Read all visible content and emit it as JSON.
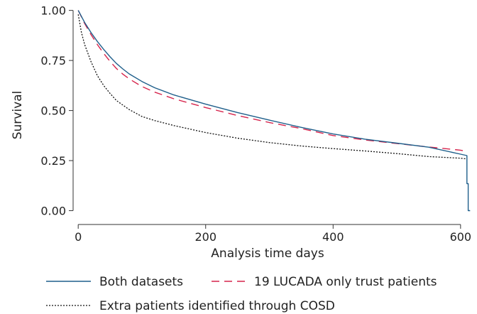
{
  "chart_data": {
    "type": "line",
    "title": "",
    "xlabel": "Analysis time days",
    "ylabel": "Survival",
    "xlim": [
      -8,
      618
    ],
    "ylim": [
      -0.03,
      1.02
    ],
    "xticks": [
      0,
      200,
      400,
      600
    ],
    "xtick_labels": [
      "0",
      "200",
      "400",
      "600"
    ],
    "yticks": [
      0,
      0.25,
      0.5,
      0.75,
      1
    ],
    "ytick_labels": [
      "0.00",
      "0.25",
      "0.50",
      "0.75",
      "1.00"
    ],
    "grid": false,
    "legend_position": "bottom",
    "series": [
      {
        "name": "Both datasets",
        "color": "#1f5f8b",
        "dash": "solid",
        "x": [
          0,
          10,
          20,
          30,
          40,
          50,
          60,
          70,
          80,
          100,
          120,
          150,
          200,
          250,
          300,
          350,
          400,
          450,
          500,
          550,
          600,
          610,
          610,
          612,
          612,
          615
        ],
        "y": [
          1.0,
          0.94,
          0.89,
          0.845,
          0.805,
          0.768,
          0.735,
          0.708,
          0.683,
          0.645,
          0.614,
          0.578,
          0.532,
          0.49,
          0.452,
          0.416,
          0.383,
          0.357,
          0.337,
          0.317,
          0.282,
          0.275,
          0.135,
          0.135,
          0.0,
          0.0
        ]
      },
      {
        "name": "19 LUCADA only trust patients",
        "color": "#d6244c",
        "dash": "dashed",
        "x": [
          0,
          10,
          20,
          30,
          40,
          50,
          60,
          70,
          80,
          100,
          120,
          150,
          200,
          250,
          300,
          350,
          400,
          450,
          500,
          550,
          600,
          610
        ],
        "y": [
          1.0,
          0.935,
          0.88,
          0.83,
          0.785,
          0.745,
          0.71,
          0.682,
          0.658,
          0.62,
          0.592,
          0.559,
          0.515,
          0.475,
          0.44,
          0.41,
          0.375,
          0.353,
          0.335,
          0.318,
          0.302,
          0.295
        ]
      },
      {
        "name": "Extra patients identified through COSD",
        "color": "#111111",
        "dash": "dotted",
        "x": [
          0,
          5,
          10,
          20,
          30,
          40,
          50,
          60,
          80,
          100,
          120,
          150,
          200,
          250,
          300,
          350,
          400,
          450,
          500,
          550,
          600,
          610
        ],
        "y": [
          0.98,
          0.89,
          0.83,
          0.745,
          0.675,
          0.625,
          0.585,
          0.55,
          0.505,
          0.47,
          0.45,
          0.425,
          0.39,
          0.362,
          0.34,
          0.323,
          0.31,
          0.298,
          0.285,
          0.27,
          0.262,
          0.258
        ]
      }
    ]
  }
}
